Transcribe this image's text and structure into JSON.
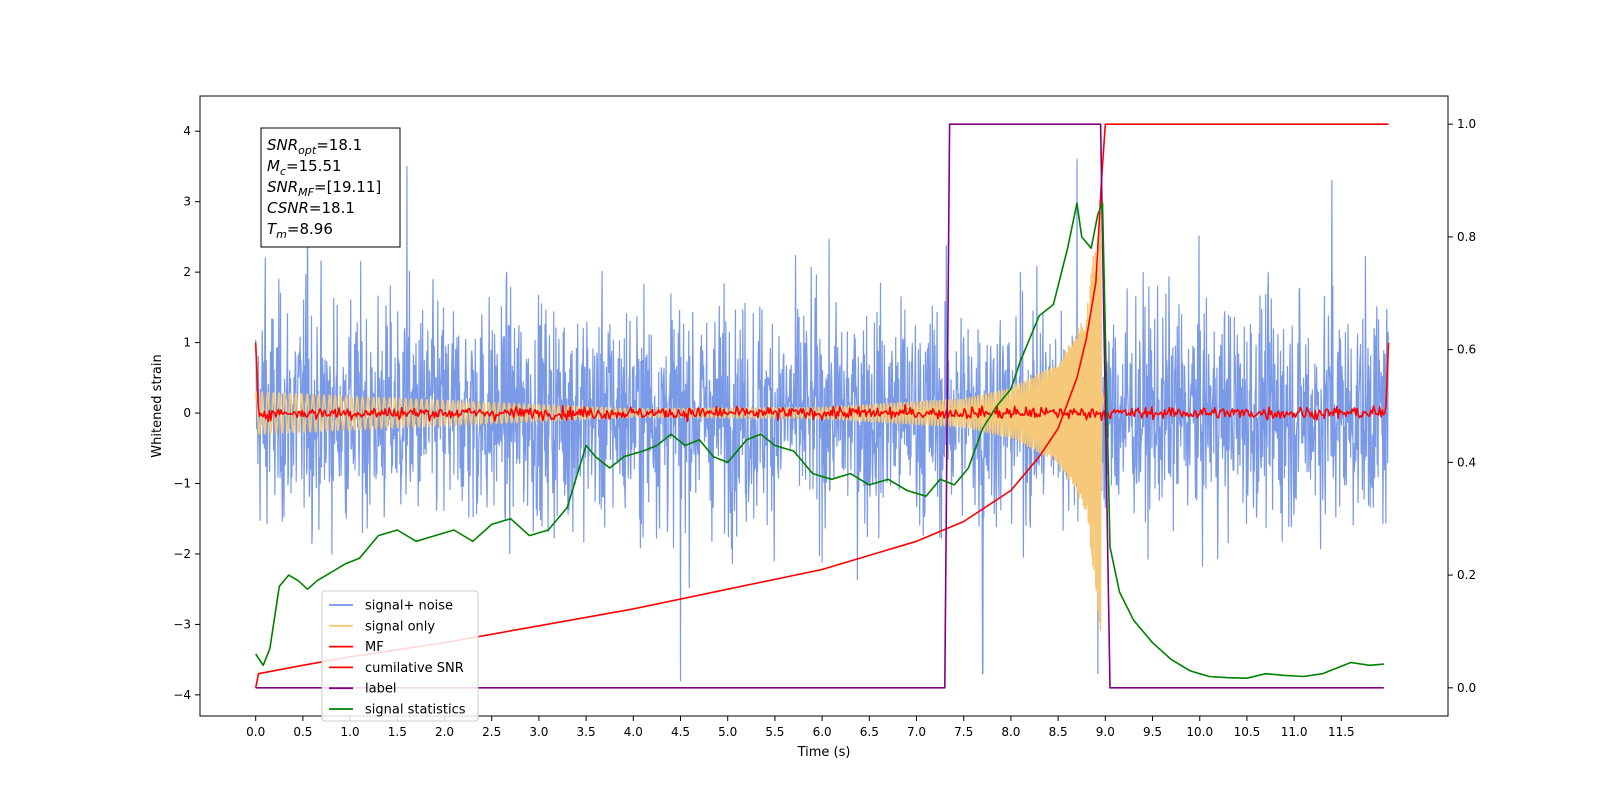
{
  "chart_data": {
    "type": "line",
    "xlabel": "Time (s)",
    "ylabel": "Whitened strain",
    "xlim": [
      -0.59,
      12.63
    ],
    "ylim_left": [
      -4.3,
      4.5
    ],
    "ylim_right": [
      -0.05,
      1.05
    ],
    "x_ticks": [
      0.0,
      0.5,
      1.0,
      1.5,
      2.0,
      2.5,
      3.0,
      3.5,
      4.0,
      4.5,
      5.0,
      5.5,
      6.0,
      6.5,
      7.0,
      7.5,
      8.0,
      8.5,
      9.0,
      9.5,
      10.0,
      10.5,
      11.0,
      11.5
    ],
    "x_tick_labels": [
      "0.0",
      "0.5",
      "1.0",
      "1.5",
      "2.0",
      "2.5",
      "3.0",
      "3.5",
      "4.0",
      "4.5",
      "5.0",
      "5.5",
      "6.0",
      "6.5",
      "7.0",
      "7.5",
      "8.0",
      "8.5",
      "9.0",
      "9.5",
      "10.0",
      "10.5",
      "11.0",
      "11.5"
    ],
    "y_left_ticks": [
      -4,
      -3,
      -2,
      -1,
      0,
      1,
      2,
      3,
      4
    ],
    "y_left_tick_labels": [
      "−4",
      "−3",
      "−2",
      "−1",
      "0",
      "1",
      "2",
      "3",
      "4"
    ],
    "y_right_ticks": [
      0.0,
      0.2,
      0.4,
      0.6,
      0.8,
      1.0
    ],
    "y_right_tick_labels": [
      "0.0",
      "0.2",
      "0.4",
      "0.6",
      "0.8",
      "1.0"
    ],
    "grid": false,
    "legend_position": "lower-left",
    "annotation": {
      "lines": [
        {
          "sym": "SNR",
          "sub": "opt",
          "val": "=18.1"
        },
        {
          "sym": "M",
          "sub": "c",
          "val": "=15.51"
        },
        {
          "sym": "SNR",
          "sub": "MF",
          "val": "=[19.11]"
        },
        {
          "sym": "CSNR",
          "sub": "",
          "val": "=18.1"
        },
        {
          "sym": "T",
          "sub": "m",
          "val": "=8.96"
        }
      ]
    },
    "series": [
      {
        "name": "signal+ noise",
        "axis": "left",
        "color": "#7393e6",
        "kind": "noise",
        "x_range": [
          0.0,
          12.0
        ],
        "noise_amplitude": 1.3,
        "mean": 0.0,
        "extremes": [
          [
            0.1,
            2.2
          ],
          [
            0.55,
            3.4
          ],
          [
            1.6,
            3.5
          ],
          [
            4.5,
            -3.8
          ],
          [
            7.7,
            -3.7
          ],
          [
            8.7,
            3.6
          ],
          [
            8.92,
            -3.7
          ],
          [
            11.4,
            3.3
          ]
        ]
      },
      {
        "name": "signal only",
        "axis": "left",
        "color": "#f6c97a",
        "kind": "chirp",
        "x_range": [
          0.0,
          9.0
        ],
        "merger_time": 8.96,
        "envelope": [
          [
            0.0,
            0.3
          ],
          [
            4.0,
            0.06
          ],
          [
            6.0,
            0.08
          ],
          [
            7.5,
            0.2
          ],
          [
            8.0,
            0.35
          ],
          [
            8.5,
            0.7
          ],
          [
            8.8,
            1.4
          ],
          [
            8.96,
            3.2
          ],
          [
            9.0,
            0.0
          ]
        ]
      },
      {
        "name": "MF",
        "axis": "left",
        "color": "#ff0000",
        "kind": "noise",
        "x_range": [
          0.0,
          12.0
        ],
        "noise_amplitude": 0.06,
        "mean": 0.0,
        "edge_spikes": [
          [
            0.0,
            1.0
          ],
          [
            12.0,
            1.0
          ]
        ]
      },
      {
        "name": "cumilative SNR",
        "axis": "right",
        "color": "#ff0000",
        "x": [
          0.0,
          0.03,
          0.5,
          1.0,
          2.0,
          3.0,
          4.0,
          5.0,
          6.0,
          7.0,
          7.5,
          8.0,
          8.3,
          8.5,
          8.7,
          8.8,
          8.9,
          8.96,
          9.0,
          12.0
        ],
        "y": [
          0.0,
          0.025,
          0.04,
          0.055,
          0.08,
          0.11,
          0.14,
          0.175,
          0.21,
          0.26,
          0.295,
          0.35,
          0.41,
          0.46,
          0.55,
          0.62,
          0.72,
          0.9,
          1.0,
          1.0
        ]
      },
      {
        "name": "label",
        "axis": "right",
        "color": "#800080",
        "x": [
          0.0,
          7.3,
          7.35,
          8.9,
          8.95,
          9.05,
          11.95
        ],
        "y": [
          0.0,
          0.0,
          1.0,
          1.0,
          1.0,
          0.0,
          0.0
        ]
      },
      {
        "name": "signal statistics",
        "axis": "right",
        "color": "#008000",
        "x": [
          0.0,
          0.08,
          0.15,
          0.25,
          0.35,
          0.45,
          0.55,
          0.65,
          0.75,
          0.85,
          0.95,
          1.1,
          1.3,
          1.5,
          1.7,
          1.9,
          2.1,
          2.3,
          2.5,
          2.7,
          2.9,
          3.1,
          3.3,
          3.5,
          3.6,
          3.75,
          3.9,
          4.1,
          4.25,
          4.4,
          4.55,
          4.7,
          4.85,
          5.0,
          5.2,
          5.35,
          5.5,
          5.7,
          5.9,
          6.1,
          6.3,
          6.5,
          6.7,
          6.9,
          7.1,
          7.25,
          7.4,
          7.55,
          7.7,
          7.85,
          8.0,
          8.1,
          8.2,
          8.3,
          8.45,
          8.6,
          8.7,
          8.75,
          8.85,
          8.92,
          8.97,
          9.05,
          9.15,
          9.3,
          9.5,
          9.7,
          9.9,
          10.1,
          10.3,
          10.5,
          10.7,
          10.9,
          11.1,
          11.3,
          11.45,
          11.6,
          11.8,
          11.95
        ],
        "y": [
          0.06,
          0.04,
          0.07,
          0.18,
          0.2,
          0.19,
          0.175,
          0.19,
          0.2,
          0.21,
          0.22,
          0.23,
          0.27,
          0.28,
          0.26,
          0.27,
          0.28,
          0.26,
          0.29,
          0.3,
          0.27,
          0.28,
          0.32,
          0.43,
          0.41,
          0.39,
          0.41,
          0.42,
          0.43,
          0.45,
          0.43,
          0.44,
          0.41,
          0.4,
          0.44,
          0.45,
          0.43,
          0.42,
          0.38,
          0.37,
          0.38,
          0.36,
          0.37,
          0.35,
          0.34,
          0.37,
          0.36,
          0.39,
          0.46,
          0.5,
          0.53,
          0.58,
          0.62,
          0.66,
          0.68,
          0.78,
          0.86,
          0.8,
          0.78,
          0.84,
          0.86,
          0.25,
          0.17,
          0.12,
          0.08,
          0.05,
          0.03,
          0.02,
          0.018,
          0.017,
          0.025,
          0.022,
          0.02,
          0.025,
          0.035,
          0.045,
          0.04,
          0.042
        ]
      }
    ]
  }
}
